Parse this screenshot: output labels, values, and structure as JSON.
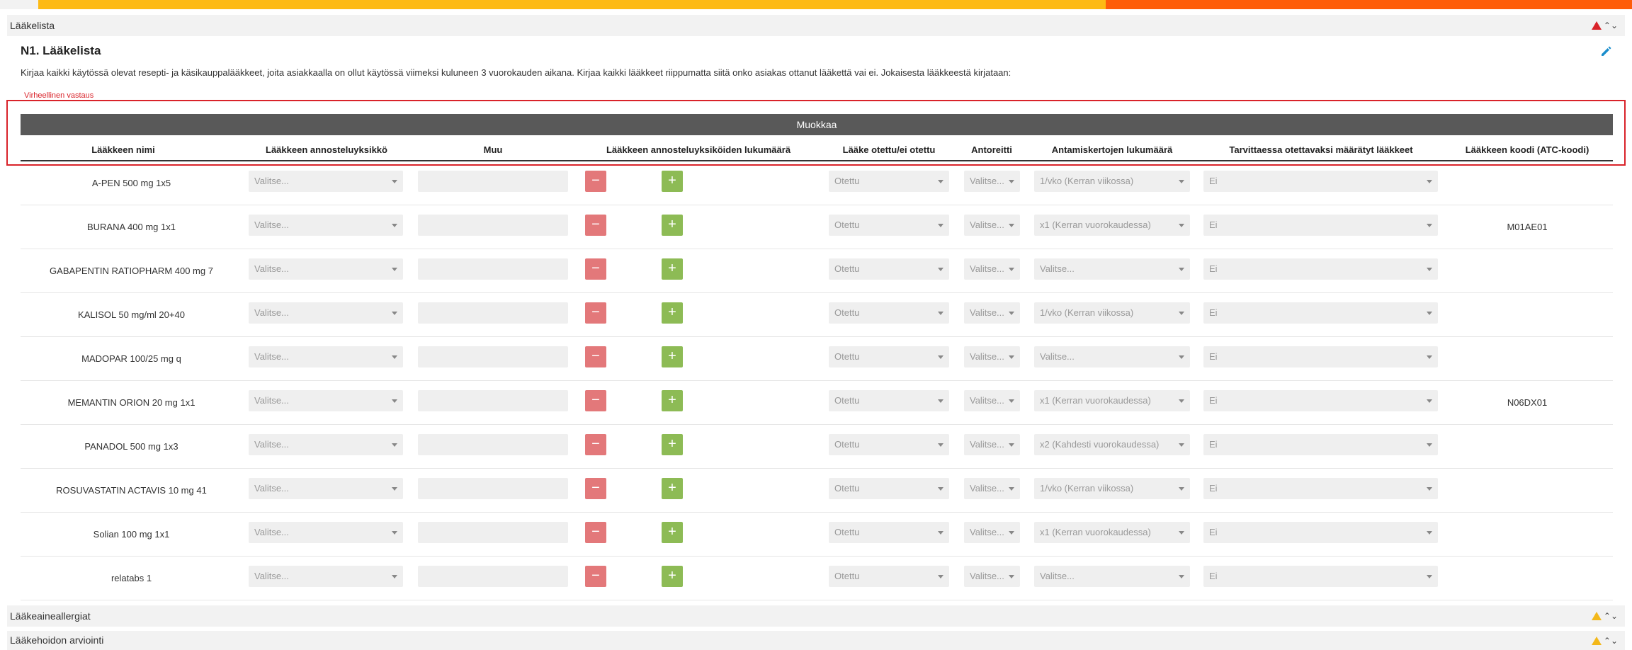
{
  "colors": {
    "progress_yellow": "#fdba14",
    "progress_orange": "#fe5c09",
    "error_red": "#d9232a",
    "warning_yellow": "#f3b81a",
    "minus_red": "#e3787a",
    "plus_green": "#8dbb55",
    "header_gray": "#595959"
  },
  "sections": {
    "laakelista": {
      "title": "Lääkelista",
      "status_icon": "warning-red-icon"
    },
    "allergiat": {
      "title": "Lääkeaineallergiat",
      "status_icon": "warning-yellow-icon"
    },
    "arviointi": {
      "title": "Lääkehoidon arviointi",
      "status_icon": "warning-yellow-icon"
    }
  },
  "question": {
    "title": "N1. Lääkelista",
    "description": "Kirjaa kaikki käytössä olevat resepti- ja käsikauppalääkkeet, joita asiakkaalla on ollut käytössä viimeksi kuluneen 3 vuorokauden aikana. Kirjaa kaikki lääkkeet riippumatta siitä onko asiakas ottanut lääkettä vai ei. Jokaisesta lääkkeestä kirjataan:",
    "error": "Virheellinen vastaus",
    "edit_icon": "pencil-icon"
  },
  "table": {
    "edit_label": "Muokkaa",
    "headers": {
      "name": "Lääkkeen nimi",
      "unit": "Lääkkeen annosteluyksikkö",
      "other": "Muu",
      "count": "Lääkkeen annosteluyksiköiden lukumäärä",
      "taken": "Lääke otettu/ei otettu",
      "route": "Antoreitti",
      "frequency": "Antamiskertojen lukumäärä",
      "prn": "Tarvittaessa otettavaksi määrätyt lääkkeet",
      "atc": "Lääkkeen koodi (ATC-koodi)"
    },
    "minus": "−",
    "plus": "+",
    "rows": [
      {
        "name": "A-PEN 500 mg 1x5",
        "unit": "Valitse...",
        "taken": "Otettu",
        "route": "Valitse...",
        "frequency": "1/vko (Kerran viikossa)",
        "prn": "Ei",
        "atc": ""
      },
      {
        "name": "BURANA 400 mg 1x1",
        "unit": "Valitse...",
        "taken": "Otettu",
        "route": "Valitse...",
        "frequency": "x1 (Kerran vuorokaudessa)",
        "prn": "Ei",
        "atc": "M01AE01"
      },
      {
        "name": "GABAPENTIN RATIOPHARM 400 mg 7",
        "unit": "Valitse...",
        "taken": "Otettu",
        "route": "Valitse...",
        "frequency": "Valitse...",
        "prn": "Ei",
        "atc": ""
      },
      {
        "name": "KALISOL 50 mg/ml 20+40",
        "unit": "Valitse...",
        "taken": "Otettu",
        "route": "Valitse...",
        "frequency": "1/vko (Kerran viikossa)",
        "prn": "Ei",
        "atc": ""
      },
      {
        "name": "MADOPAR 100/25 mg q",
        "unit": "Valitse...",
        "taken": "Otettu",
        "route": "Valitse...",
        "frequency": "Valitse...",
        "prn": "Ei",
        "atc": ""
      },
      {
        "name": "MEMANTIN ORION 20 mg 1x1",
        "unit": "Valitse...",
        "taken": "Otettu",
        "route": "Valitse...",
        "frequency": "x1 (Kerran vuorokaudessa)",
        "prn": "Ei",
        "atc": "N06DX01"
      },
      {
        "name": "PANADOL 500 mg 1x3",
        "unit": "Valitse...",
        "taken": "Otettu",
        "route": "Valitse...",
        "frequency": "x2 (Kahdesti vuorokaudessa)",
        "prn": "Ei",
        "atc": ""
      },
      {
        "name": "ROSUVASTATIN ACTAVIS 10 mg 41",
        "unit": "Valitse...",
        "taken": "Otettu",
        "route": "Valitse...",
        "frequency": "1/vko (Kerran viikossa)",
        "prn": "Ei",
        "atc": ""
      },
      {
        "name": "Solian 100 mg 1x1",
        "unit": "Valitse...",
        "taken": "Otettu",
        "route": "Valitse...",
        "frequency": "x1 (Kerran vuorokaudessa)",
        "prn": "Ei",
        "atc": ""
      },
      {
        "name": "relatabs 1",
        "unit": "Valitse...",
        "taken": "Otettu",
        "route": "Valitse...",
        "frequency": "Valitse...",
        "prn": "Ei",
        "atc": ""
      }
    ]
  }
}
